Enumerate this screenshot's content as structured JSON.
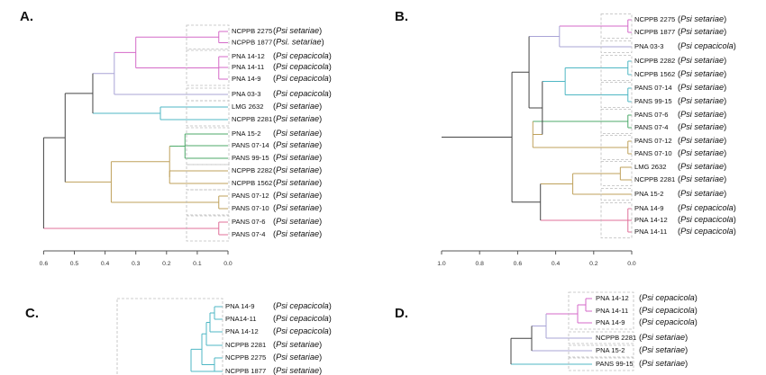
{
  "colors": {
    "black": "#444444",
    "magenta": "#d46ac8",
    "cyan": "#4fb7c4",
    "green": "#4daa6a",
    "gold": "#bfa15b",
    "pink": "#e0709a",
    "lilac": "#a9a4d6",
    "grey_box": "#bcbcbc"
  },
  "panels": [
    {
      "label": "A.",
      "axis_ticks": [
        "0.6",
        "0.5",
        "0.4",
        "0.3",
        "0.2",
        "0.1",
        "0.0"
      ],
      "leaves": [
        {
          "code": "NCPPB 2275",
          "species": "(Psi setariae)"
        },
        {
          "code": "NCPPB 1877",
          "species": "(Psi. setariae)"
        },
        {
          "code": "PNA   14-12",
          "species": "(Psi cepacicola)"
        },
        {
          "code": "PNA   14-11",
          "species": "(Psi cepacicola)"
        },
        {
          "code": "PNA 14-9",
          "species": "(Psi cepacicola)"
        },
        {
          "code": "PNA 03-3",
          "species": "(Psi cepacicola)"
        },
        {
          "code": "LMG 2632",
          "species": "(Psi setariae)"
        },
        {
          "code": "NCPPB 2281",
          "species": "(Psi setariae)"
        },
        {
          "code": "PNA 15-2",
          "species": "(Psi setariae)"
        },
        {
          "code": "PANS 07-14",
          "species": "(Psi setariae)"
        },
        {
          "code": "PANS 99-15",
          "species": "(Psi setariae)"
        },
        {
          "code": "NCPPB 2282",
          "species": "(Psi setariae)"
        },
        {
          "code": "NCPPB 1562",
          "species": "(Psi setariae)"
        },
        {
          "code": "PANS 07-12",
          "species": "(Psi setariae)"
        },
        {
          "code": "PANS 07-10",
          "species": "(Psi setariae)"
        },
        {
          "code": "PANS 07-6",
          "species": "(Psi setariae)"
        },
        {
          "code": "PANS 07-4",
          "species": "(Psi setariae)"
        }
      ]
    },
    {
      "label": "B.",
      "axis_ticks": [
        "1.0",
        "0.8",
        "0.6",
        "0.4",
        "0.2",
        "0.0"
      ],
      "leaves": [
        {
          "code": "NCPPB 2275",
          "species": "(Psi setariae)"
        },
        {
          "code": "NCPPB 1877",
          "species": "(Psi setariae)"
        },
        {
          "code": "PNA 03-3",
          "species": "(Psi cepacicola)"
        },
        {
          "code": "NCPPB 2282",
          "species": "(Psi setariae)"
        },
        {
          "code": "NCPPB 1562",
          "species": "(Psi setariae)"
        },
        {
          "code": "PANS 07-14",
          "species": "(Psi setariae)"
        },
        {
          "code": "PANS 99-15",
          "species": "(Psi setariae)"
        },
        {
          "code": "PANS 07-6",
          "species": "(Psi setariae)"
        },
        {
          "code": "PANS 07-4",
          "species": "(Psi setariae)"
        },
        {
          "code": "PANS 07-12",
          "species": "(Psi setariae)"
        },
        {
          "code": "PANS 07-10",
          "species": "(Psi setariae)"
        },
        {
          "code": "LMG 2632",
          "species": "(Psi setariae)"
        },
        {
          "code": "NCPPB 2281",
          "species": "(Psi setariae)"
        },
        {
          "code": "PNA 15-2",
          "species": "(Psi setariae)"
        },
        {
          "code": "PNA 14-9",
          "species": "(Psi cepacicola)"
        },
        {
          "code": "PNA 14-12",
          "species": "(Psi cepacicola)"
        },
        {
          "code": "PNA 14-11",
          "species": "(Psi cepacicola)"
        }
      ]
    },
    {
      "label": "C.",
      "leaves": [
        {
          "code": "PNA 14-9",
          "species": "(Psi cepacicola)"
        },
        {
          "code": "PNA14-11",
          "species": "(Psi cepacicola)"
        },
        {
          "code": "PNA 14-12",
          "species": "(Psi cepacicola)"
        },
        {
          "code": "NCPPB 2281",
          "species": "(Psi setariae)"
        },
        {
          "code": "NCPPB 2275",
          "species": "(Psi setariae)"
        },
        {
          "code": "NCPPB 1877",
          "species": "(Psi setariae)"
        }
      ]
    },
    {
      "label": "D.",
      "leaves": [
        {
          "code": "PNA 14-12",
          "species": "(Psi cepacicola)"
        },
        {
          "code": "PNA 14-11",
          "species": "(Psi cepacicola)"
        },
        {
          "code": "PNA 14-9",
          "species": "(Psi cepacicola)"
        },
        {
          "code": "NCPPB 2281",
          "species": "(Psi setariae)"
        },
        {
          "code": "PNA 15-2",
          "species": "(Psi setariae)"
        },
        {
          "code": "PANS 99-15",
          "species": "(Psi setariae)"
        }
      ]
    }
  ]
}
